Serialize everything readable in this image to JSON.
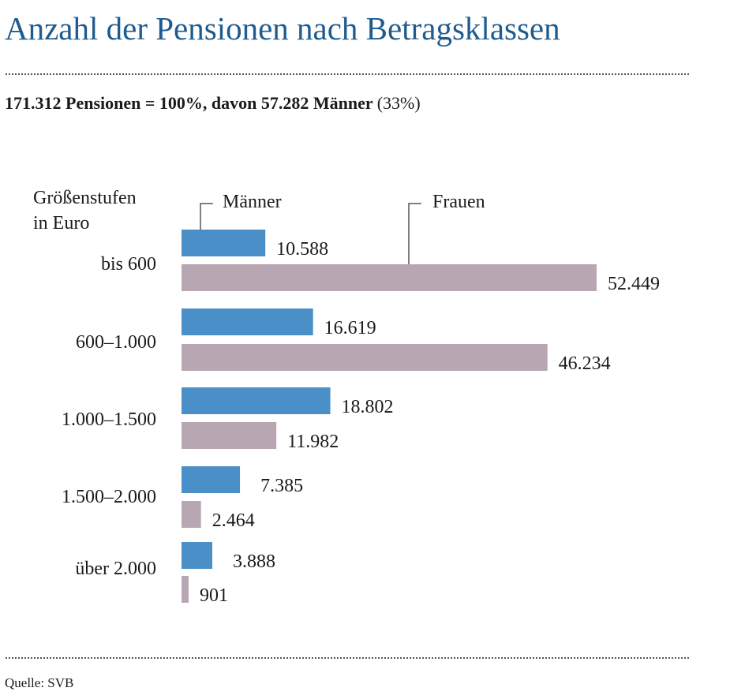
{
  "title": "Anzahl der Pensionen nach Betragsklassen",
  "subtitle": {
    "main": "171.312 Pensionen = 100%, davon 57.282 Männer",
    "paren": "(33%)"
  },
  "source": "Quelle: SVB",
  "chart_data": {
    "type": "bar",
    "orientation": "horizontal",
    "axis_label_lines": [
      "Größenstufen",
      "in Euro"
    ],
    "categories": [
      "bis 600",
      "600–1.000",
      "1.000–1.500",
      "1.500–2.000",
      "über 2.000"
    ],
    "series": [
      {
        "name": "Männer",
        "color": "#4a8fc7",
        "values": [
          10588,
          16619,
          18802,
          7385,
          3888
        ],
        "labels": [
          "10.588",
          "16.619",
          "18.802",
          "7.385",
          "3.888"
        ]
      },
      {
        "name": "Frauen",
        "color": "#b8a6b3",
        "values": [
          52449,
          46234,
          11982,
          2464,
          901
        ],
        "labels": [
          "52.449",
          "46.234",
          "11.982",
          "2.464",
          "901"
        ]
      }
    ],
    "xlim": [
      0,
      52449
    ],
    "grid": false,
    "legend": "top"
  }
}
